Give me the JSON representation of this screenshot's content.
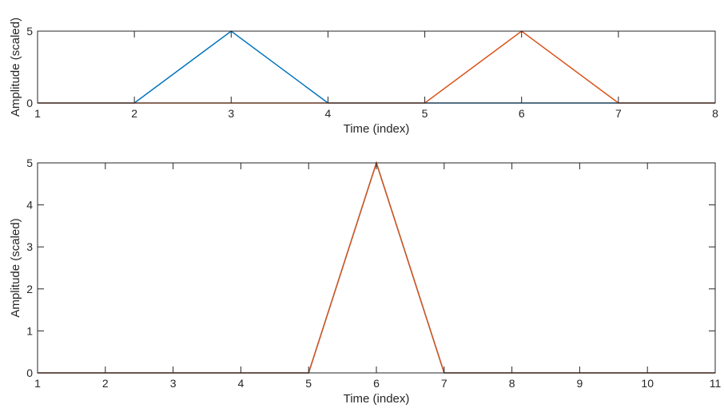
{
  "chart_data": [
    {
      "type": "line",
      "title": "",
      "xlabel": "Time (index)",
      "ylabel": "Amplitude (scaled)",
      "xlim": [
        1,
        8
      ],
      "ylim": [
        0,
        5
      ],
      "xticks": [
        1,
        2,
        3,
        4,
        5,
        6,
        7,
        8
      ],
      "yticks": [
        0,
        5
      ],
      "grid": false,
      "series": [
        {
          "color": "#0072BD",
          "x": [
            1,
            2,
            3,
            4,
            5,
            6,
            7,
            8
          ],
          "values": [
            0,
            0,
            5,
            0,
            0,
            0,
            0,
            0
          ]
        },
        {
          "color": "#D95319",
          "x": [
            1,
            2,
            3,
            4,
            5,
            6,
            7,
            8
          ],
          "values": [
            0,
            0,
            0,
            0,
            0,
            5,
            0,
            0
          ]
        }
      ]
    },
    {
      "type": "line",
      "title": "",
      "xlabel": "Time (index)",
      "ylabel": "Amplitude (scaled)",
      "xlim": [
        1,
        11
      ],
      "ylim": [
        0,
        5
      ],
      "xticks": [
        1,
        2,
        3,
        4,
        5,
        6,
        7,
        8,
        9,
        10,
        11
      ],
      "yticks": [
        0,
        1,
        2,
        3,
        4,
        5
      ],
      "grid": false,
      "series": [
        {
          "color": "#0072BD",
          "x": [
            1,
            2,
            3,
            4,
            5,
            6,
            7,
            8,
            9,
            10,
            11
          ],
          "values": [
            0,
            0,
            0,
            0,
            0,
            5,
            0,
            0,
            0,
            0,
            0
          ]
        },
        {
          "color": "#D95319",
          "x": [
            1,
            2,
            3,
            4,
            5,
            6,
            7,
            8,
            9,
            10,
            11
          ],
          "values": [
            0,
            0,
            0,
            0,
            0,
            5,
            0,
            0,
            0,
            0,
            0
          ]
        }
      ]
    }
  ]
}
